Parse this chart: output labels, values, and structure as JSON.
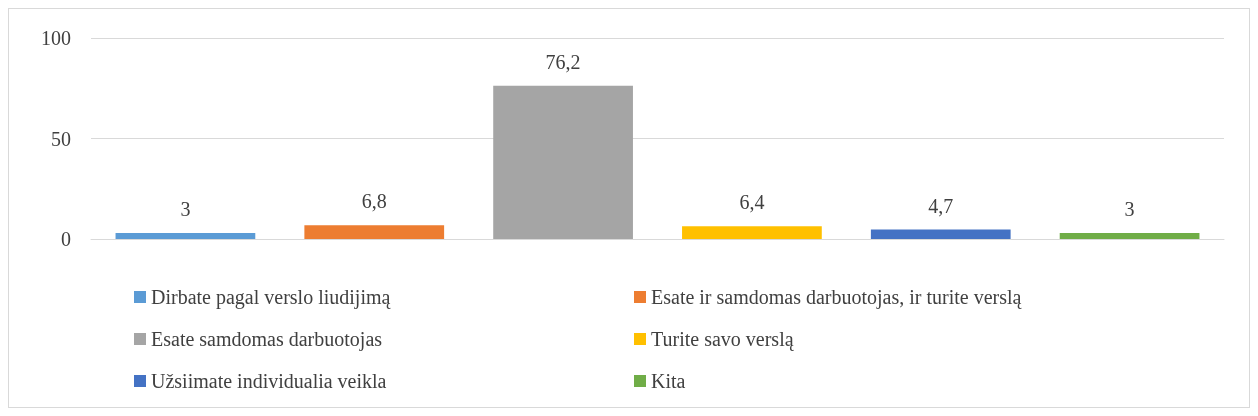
{
  "chart_data": {
    "type": "bar",
    "categories": [
      null,
      null,
      null,
      null,
      null,
      null
    ],
    "stacked": true,
    "ylim": [
      0,
      100
    ],
    "yticks": [
      0,
      50,
      100
    ],
    "grid": "y",
    "legend": "bottom",
    "series": [
      {
        "name": "Dirbate pagal verslo liudijimą",
        "color": "#5b9bd5",
        "values": [
          3,
          null,
          null,
          null,
          null,
          null
        ],
        "value_labels": [
          "3",
          null,
          null,
          null,
          null,
          null
        ]
      },
      {
        "name": "Esate ir samdomas darbuotojas, ir turite verslą",
        "color": "#ed7d31",
        "values": [
          null,
          6.8,
          null,
          null,
          null,
          null
        ],
        "value_labels": [
          null,
          "6,8",
          null,
          null,
          null,
          null
        ]
      },
      {
        "name": "Esate samdomas darbuotojas",
        "color": "#a5a5a5",
        "values": [
          null,
          null,
          76.2,
          null,
          null,
          null
        ],
        "value_labels": [
          null,
          null,
          "76,2",
          null,
          null,
          null
        ]
      },
      {
        "name": "Turite savo verslą",
        "color": "#ffc000",
        "values": [
          null,
          null,
          null,
          6.4,
          null,
          null
        ],
        "value_labels": [
          null,
          null,
          null,
          "6,4",
          null,
          null
        ]
      },
      {
        "name": "Užsiimate individualia veikla",
        "color": "#4472c4",
        "values": [
          null,
          null,
          null,
          null,
          4.7,
          null
        ],
        "value_labels": [
          null,
          null,
          null,
          null,
          "4,7",
          null
        ]
      },
      {
        "name": "Kita",
        "color": "#70ad47",
        "values": [
          null,
          null,
          null,
          null,
          null,
          3
        ],
        "value_labels": [
          null,
          null,
          null,
          null,
          null,
          "3"
        ]
      }
    ]
  }
}
